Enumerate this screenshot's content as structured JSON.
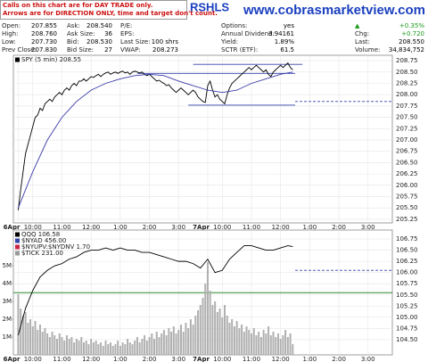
{
  "banner": [
    "Calls on this chart are for DAY TRADE only.",
    "Arrows are for DIRECTION ONLY, time and target don't count."
  ],
  "symbol": "RSHLS",
  "site": "www.cobrasmarketview.com",
  "quote": [
    [
      {
        "label": "Open:",
        "value": "207.855"
      },
      {
        "label": "High:",
        "value": "208.760"
      },
      {
        "label": "Low:",
        "value": "207.730"
      },
      {
        "label": "Prev Close:",
        "value": "207.830"
      }
    ],
    [
      {
        "label": "Ask:",
        "value": "208.540"
      },
      {
        "label": "Ask Size:",
        "value": "36"
      },
      {
        "label": "Bid:",
        "value": "208.530"
      },
      {
        "label": "Bid Size:",
        "value": "27"
      }
    ],
    [
      {
        "label": "P/E:",
        "value": ""
      },
      {
        "label": "EPS:",
        "value": ""
      },
      {
        "label": "Last Size:",
        "value": "100 shrs"
      },
      {
        "label": "VWAP:",
        "value": "208.273"
      }
    ],
    [
      {
        "label": "Options:",
        "value": "yes"
      },
      {
        "label": "Annual Dividend:",
        "value": "3.94161"
      },
      {
        "label": "Yield:",
        "value": "1.89%"
      },
      {
        "label": "SCTR (ETF):",
        "value": "61.5"
      }
    ],
    [
      {
        "label": "▲",
        "value": "+0.35%"
      },
      {
        "label": "Chg:",
        "value": "+0.720"
      },
      {
        "label": "Last:",
        "value": "208.550"
      },
      {
        "label": "Volume:",
        "value": "34,834,752"
      }
    ]
  ],
  "chart_data": [
    {
      "type": "line",
      "grid": true,
      "xlim": [
        -2,
        154
      ],
      "ylim": [
        205.17,
        208.87
      ],
      "xticks": [
        {
          "value": 0,
          "label": "6Apr"
        },
        {
          "value": 6,
          "label": "10:00"
        },
        {
          "value": 18,
          "label": "11:00"
        },
        {
          "value": 30,
          "label": "12:00"
        },
        {
          "value": 42,
          "label": "1:00"
        },
        {
          "value": 54,
          "label": "2:00"
        },
        {
          "value": 66,
          "label": "3:00"
        },
        {
          "value": 78,
          "label": "7Apr"
        },
        {
          "value": 84,
          "label": "10:00"
        },
        {
          "value": 96,
          "label": "11:00"
        },
        {
          "value": 108,
          "label": "12:00"
        },
        {
          "value": 120,
          "label": "1:00"
        },
        {
          "value": 132,
          "label": "2:00"
        },
        {
          "value": 144,
          "label": "3:00"
        }
      ],
      "yticks": [
        205.25,
        {
          "value": 205.5,
          "label": "205.50"
        },
        205.75,
        {
          "value": 206,
          "label": "206.00"
        },
        206.25,
        {
          "value": 206.5,
          "label": "206.50"
        },
        206.75,
        {
          "value": 207,
          "label": "207.00"
        },
        207.25,
        {
          "value": 207.5,
          "label": "207.50"
        },
        207.75,
        {
          "value": 208,
          "label": "208.00"
        },
        208.25,
        {
          "value": 208.5,
          "label": "208.50"
        },
        208.75
      ],
      "series": [
        {
          "name": "SPY (5 min) 208.55",
          "color": "#000000",
          "values": [
            205.45,
            205.9,
            206.3,
            206.7,
            206.9,
            207.1,
            207.3,
            207.5,
            207.55,
            207.7,
            207.65,
            207.8,
            207.85,
            207.9,
            207.85,
            207.95,
            208.0,
            208.05,
            208.0,
            208.1,
            208.15,
            208.1,
            208.2,
            208.25,
            208.2,
            208.3,
            208.3,
            208.35,
            208.3,
            208.35,
            208.4,
            208.38,
            208.42,
            208.45,
            208.4,
            208.45,
            208.48,
            208.5,
            208.45,
            208.48,
            208.5,
            208.47,
            208.5,
            208.52,
            208.48,
            208.5,
            208.45,
            208.5,
            208.52,
            208.5,
            208.48,
            208.5,
            208.45,
            208.42,
            208.45,
            208.4,
            208.35,
            208.3,
            208.32,
            208.28,
            208.25,
            208.2,
            208.22,
            208.15,
            208.1,
            208.05,
            208.1,
            208.15,
            208.1,
            208.05,
            208.0,
            208.05,
            208.1,
            208.05,
            207.95,
            207.9,
            207.85,
            207.83,
            208.2,
            208.3,
            208.1,
            207.95,
            208.0,
            207.9,
            207.85,
            207.8,
            208.0,
            208.15,
            208.25,
            208.3,
            208.35,
            208.4,
            208.45,
            208.5,
            208.55,
            208.6,
            208.55,
            208.6,
            208.65,
            208.6,
            208.55,
            208.5,
            208.55,
            208.45,
            208.4,
            208.5,
            208.55,
            208.6,
            208.65,
            208.6,
            208.65,
            208.7,
            208.6,
            208.55
          ]
        },
        {
          "color": "#3a3aa8",
          "x": [
            0,
            6,
            12,
            18,
            24,
            30,
            36,
            42,
            48,
            54,
            60,
            66,
            72,
            78,
            84,
            90,
            96,
            102,
            108,
            113
          ],
          "values": [
            205.5,
            206.3,
            207.0,
            207.5,
            207.85,
            208.1,
            208.25,
            208.35,
            208.42,
            208.45,
            208.42,
            208.3,
            208.2,
            208.1,
            208.05,
            208.1,
            208.25,
            208.35,
            208.45,
            208.5
          ]
        }
      ],
      "levels": [
        {
          "value": 208.47,
          "from": 49,
          "to": 114,
          "color": "#3344aa"
        },
        {
          "value": 208.67,
          "from": 72,
          "to": 117,
          "color": "#3344aa"
        },
        {
          "value": 207.77,
          "from": 70,
          "to": 114,
          "color": "#3344aa"
        },
        {
          "value": 207.85,
          "from": 114,
          "to": 154,
          "color": "#3344aa",
          "dashed": true
        }
      ]
    },
    {
      "type": "combo",
      "grid": true,
      "xlim": [
        -2,
        154
      ],
      "ylim": [
        104.16,
        106.95
      ],
      "y2lim": [
        0,
        7
      ],
      "xticks": [
        {
          "value": 0,
          "label": "6Apr"
        },
        {
          "value": 6,
          "label": "10:00"
        },
        {
          "value": 18,
          "label": "11:00"
        },
        {
          "value": 30,
          "label": "12:00"
        },
        {
          "value": 42,
          "label": "1:00"
        },
        {
          "value": 54,
          "label": "2:00"
        },
        {
          "value": 66,
          "label": "3:00"
        },
        {
          "value": 78,
          "label": "7Apr"
        },
        {
          "value": 84,
          "label": "10:00"
        },
        {
          "value": 96,
          "label": "11:00"
        },
        {
          "value": 108,
          "label": "12:00"
        },
        {
          "value": 120,
          "label": "1:00"
        },
        {
          "value": 132,
          "label": "2:00"
        },
        {
          "value": 144,
          "label": "3:00"
        }
      ],
      "yticks": [
        {
          "value": 104.5,
          "label": "104.50"
        },
        104.75,
        {
          "value": 105,
          "label": "105.00"
        },
        105.25,
        {
          "value": 105.5,
          "label": "105.50"
        },
        105.75,
        {
          "value": 106,
          "label": "106.00"
        },
        106.25,
        {
          "value": 106.5,
          "label": "106.50"
        },
        106.75
      ],
      "y2ticks": [
        {
          "value": 1,
          "label": "1M"
        },
        {
          "value": 2,
          "label": "2M"
        },
        {
          "value": 3,
          "label": "3M"
        },
        {
          "value": 4,
          "label": "4M"
        },
        {
          "value": 5,
          "label": "5M"
        }
      ],
      "series": [
        {
          "color": "#b0b0b0",
          "axis": "y2",
          "values": [
            3.4,
            2.6,
            2.2,
            2.4,
            1.8,
            2.0,
            1.6,
            1.9,
            1.4,
            1.7,
            1.3,
            1.5,
            1.2,
            1.0,
            1.3,
            1.1,
            0.9,
            1.2,
            1.0,
            0.8,
            1.1,
            0.9,
            1.0,
            0.7,
            0.9,
            0.8,
            1.0,
            0.7,
            0.8,
            0.6,
            0.9,
            0.7,
            0.8,
            0.6,
            0.7,
            0.5,
            0.8,
            0.6,
            0.7,
            0.5,
            0.6,
            0.8,
            0.5,
            0.7,
            0.6,
            0.9,
            0.7,
            0.6,
            0.8,
            1.0,
            0.7,
            0.9,
            1.1,
            0.8,
            1.0,
            1.2,
            0.9,
            1.3,
            1.0,
            1.2,
            1.4,
            1.1,
            1.5,
            1.3,
            1.6,
            1.2,
            1.4,
            1.7,
            1.3,
            1.8,
            1.5,
            2.0,
            1.7,
            2.2,
            2.5,
            2.8,
            3.2,
            4.0,
            5.2,
            3.6,
            2.8,
            3.0,
            2.4,
            2.6,
            2.1,
            2.8,
            2.2,
            1.8,
            2.0,
            1.6,
            1.9,
            1.5,
            1.7,
            1.3,
            1.6,
            1.4,
            1.2,
            1.5,
            1.1,
            1.3,
            1.0,
            1.4,
            1.2,
            1.6,
            1.1,
            1.3,
            1.0,
            1.2,
            0.9,
            1.1,
            1.4,
            1.0,
            1.2,
            0.6
          ]
        },
        {
          "name": "QQQ 106.58",
          "color": "#000000",
          "x": [
            0,
            3,
            6,
            9,
            12,
            15,
            18,
            21,
            24,
            27,
            30,
            33,
            36,
            39,
            42,
            45,
            48,
            51,
            54,
            57,
            60,
            63,
            66,
            69,
            72,
            75,
            78,
            81,
            84,
            87,
            90,
            93,
            96,
            99,
            102,
            105,
            108,
            111,
            113
          ],
          "values": [
            104.6,
            105.2,
            105.6,
            105.9,
            106.05,
            106.15,
            106.2,
            106.3,
            106.35,
            106.45,
            106.5,
            106.5,
            106.55,
            106.5,
            106.55,
            106.5,
            106.5,
            106.45,
            106.45,
            106.4,
            106.35,
            106.3,
            106.25,
            106.25,
            106.2,
            106.1,
            106.3,
            106.0,
            106.05,
            106.3,
            106.45,
            106.6,
            106.6,
            106.55,
            106.5,
            106.5,
            106.55,
            106.6,
            106.58
          ]
        }
      ],
      "indicators": [
        {
          "name": "$NYAD 456.00",
          "color": "#3344aa"
        },
        {
          "name": "$NYUPV:$NYDNV 1.70",
          "color": "#cc2244"
        },
        {
          "name": "$TICK 231.00",
          "color": "#999999"
        }
      ],
      "levels": [
        {
          "value": 106.05,
          "from": 114,
          "to": 154,
          "color": "#3344aa",
          "dashed": true
        },
        {
          "value": 105.55,
          "from": -2,
          "to": 154,
          "color": "#2a8a2a"
        }
      ]
    }
  ]
}
